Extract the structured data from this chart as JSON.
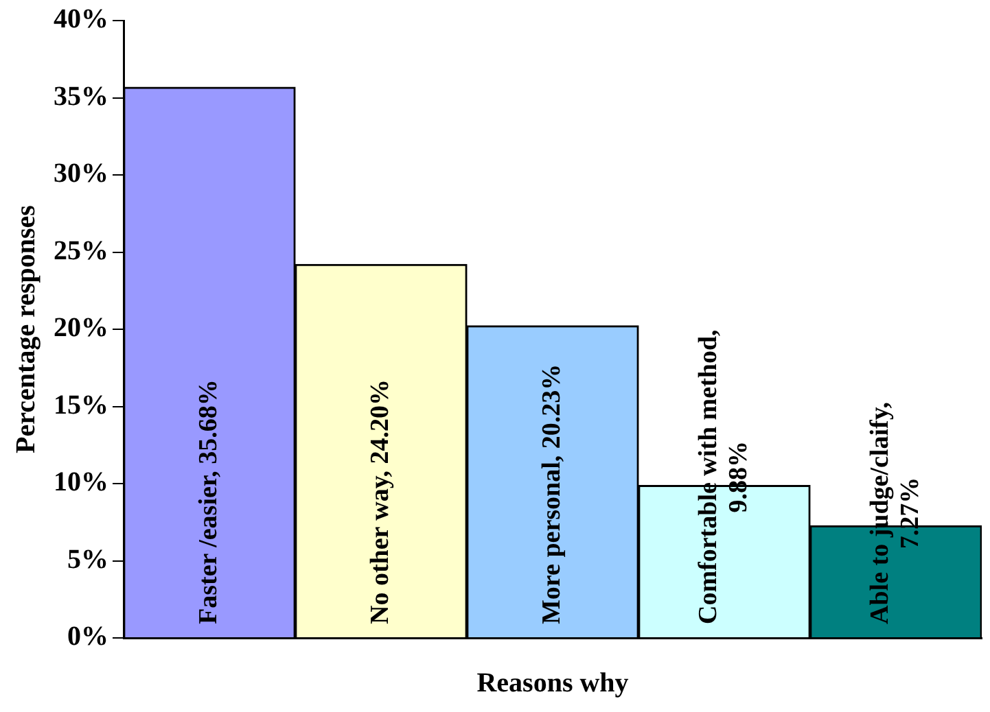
{
  "chart_data": {
    "type": "bar",
    "xlabel": "Reasons why",
    "ylabel": "Percentage responses",
    "categories": [
      "Faster /easier, 35.68%",
      "No other way, 24.20%",
      "More personal, 20.23%",
      "Comfortable with method, 9.88%",
      "Able to judge/claify, 7.27%"
    ],
    "values": [
      35.68,
      24.2,
      20.23,
      9.88,
      7.27
    ],
    "colors": [
      "#9999ff",
      "#ffffcc",
      "#99ccff",
      "#ccffff",
      "#008080"
    ],
    "ylim": [
      0,
      40
    ],
    "yticks": [
      {
        "value": 0,
        "label": "0%"
      },
      {
        "value": 5,
        "label": "5%"
      },
      {
        "value": 10,
        "label": "10%"
      },
      {
        "value": 15,
        "label": "15%"
      },
      {
        "value": 20,
        "label": "20%"
      },
      {
        "value": 25,
        "label": "25%"
      },
      {
        "value": 30,
        "label": "30%"
      },
      {
        "value": 35,
        "label": "35%"
      },
      {
        "value": 40,
        "label": "40%"
      }
    ],
    "grid": false,
    "legend": false
  }
}
